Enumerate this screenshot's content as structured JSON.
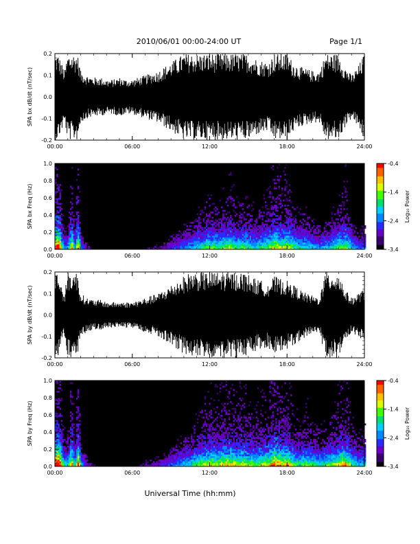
{
  "header": {
    "title": "2010/06/01   00:00-24:00 UT",
    "page": "Page 1/1"
  },
  "colors": {
    "background": "#ffffff",
    "foreground": "#000000",
    "colormap": [
      "#000000",
      "#3b0070",
      "#6a00c8",
      "#2a2aff",
      "#0088ff",
      "#00d0ff",
      "#00e070",
      "#40ff00",
      "#d8ff00",
      "#ffc000",
      "#ff6000",
      "#ff0000"
    ]
  },
  "x_axis": {
    "label": "Universal Time (hh:mm)",
    "ticks": [
      "00:00",
      "06:00",
      "12:00",
      "18:00",
      "24:00"
    ],
    "range_hours": [
      0,
      24
    ]
  },
  "colorbar": {
    "label": "Log₁₀ Power",
    "ticks": [
      "-0.4",
      "-1.4",
      "-2.4",
      "-3.4"
    ],
    "range": [
      -3.4,
      -0.4
    ]
  },
  "chart_data": [
    {
      "type": "line",
      "ylabel": "SPA bx dB/dt (nT/sec)",
      "ylim": [
        -0.2,
        0.2
      ],
      "yticks": [
        "0.2",
        "0.1",
        "0.0",
        "-0.1",
        "-0.2"
      ],
      "x_hours": [
        0,
        0.25,
        0.5,
        0.75,
        1,
        1.25,
        1.5,
        1.75,
        2,
        2.5,
        3,
        3.5,
        4,
        4.5,
        5,
        5.5,
        6,
        6.5,
        7,
        7.5,
        8,
        8.5,
        9,
        9.5,
        10,
        10.5,
        11,
        11.5,
        12,
        12.5,
        13,
        13.5,
        14,
        14.5,
        15,
        15.5,
        16,
        16.5,
        17,
        17.5,
        18,
        18.5,
        19,
        19.5,
        20,
        20.5,
        21,
        21.5,
        22,
        22.5,
        23,
        23.5,
        24
      ],
      "envelope_nT_per_s": [
        0.2,
        0.2,
        0.16,
        0.12,
        0.2,
        0.2,
        0.2,
        0.2,
        0.12,
        0.1,
        0.09,
        0.09,
        0.08,
        0.08,
        0.09,
        0.08,
        0.08,
        0.09,
        0.1,
        0.11,
        0.12,
        0.14,
        0.16,
        0.18,
        0.2,
        0.2,
        0.2,
        0.2,
        0.2,
        0.2,
        0.2,
        0.2,
        0.2,
        0.2,
        0.2,
        0.18,
        0.17,
        0.16,
        0.2,
        0.2,
        0.2,
        0.16,
        0.14,
        0.13,
        0.12,
        0.12,
        0.2,
        0.2,
        0.2,
        0.14,
        0.1,
        0.14,
        0.2
      ]
    },
    {
      "type": "heatmap",
      "ylabel": "SPA bx Freq (Hz)",
      "ylim": [
        0.0,
        1.0
      ],
      "yticks": [
        "1.0",
        "0.8",
        "0.6",
        "0.4",
        "0.2",
        "0.0"
      ],
      "x_hours": [
        0,
        0.25,
        0.5,
        0.75,
        1,
        1.25,
        1.5,
        1.75,
        2,
        2.5,
        3,
        3.5,
        4,
        4.5,
        5,
        5.5,
        6,
        6.5,
        7,
        7.5,
        8,
        8.5,
        9,
        9.5,
        10,
        10.5,
        11,
        11.5,
        12,
        12.5,
        13,
        13.5,
        14,
        14.5,
        15,
        15.5,
        16,
        16.5,
        17,
        17.5,
        18,
        18.5,
        19,
        19.5,
        20,
        20.5,
        21,
        21.5,
        22,
        22.5,
        23,
        23.5,
        24
      ],
      "activity_0_to_1": [
        0.85,
        0.95,
        0.5,
        0.3,
        0.4,
        0.75,
        0.35,
        0.8,
        0.3,
        0.18,
        0.12,
        0.1,
        0.12,
        0.1,
        0.1,
        0.1,
        0.1,
        0.12,
        0.15,
        0.16,
        0.18,
        0.2,
        0.25,
        0.3,
        0.35,
        0.38,
        0.45,
        0.5,
        0.55,
        0.5,
        0.55,
        0.6,
        0.5,
        0.55,
        0.5,
        0.45,
        0.5,
        0.55,
        0.7,
        0.6,
        0.65,
        0.5,
        0.45,
        0.45,
        0.4,
        0.35,
        0.4,
        0.45,
        0.55,
        0.6,
        0.4,
        0.3,
        0.35
      ],
      "colorbar_range_log10_power": [
        -3.4,
        -0.4
      ]
    },
    {
      "type": "line",
      "ylabel": "SPA by dB/dt (nT/sec)",
      "ylim": [
        -0.2,
        0.2
      ],
      "yticks": [
        "0.2",
        "0.1",
        "0.0",
        "-0.1",
        "-0.2"
      ],
      "x_hours": [
        0,
        0.25,
        0.5,
        0.75,
        1,
        1.25,
        1.5,
        1.75,
        2,
        2.5,
        3,
        3.5,
        4,
        4.5,
        5,
        5.5,
        6,
        6.5,
        7,
        7.5,
        8,
        8.5,
        9,
        9.5,
        10,
        10.5,
        11,
        11.5,
        12,
        12.5,
        13,
        13.5,
        14,
        14.5,
        15,
        15.5,
        16,
        16.5,
        17,
        17.5,
        18,
        18.5,
        19,
        19.5,
        20,
        20.5,
        21,
        21.5,
        22,
        22.5,
        23,
        23.5,
        24
      ],
      "envelope_nT_per_s": [
        0.2,
        0.2,
        0.14,
        0.1,
        0.2,
        0.2,
        0.2,
        0.2,
        0.1,
        0.08,
        0.07,
        0.07,
        0.06,
        0.06,
        0.06,
        0.06,
        0.06,
        0.07,
        0.08,
        0.09,
        0.1,
        0.12,
        0.14,
        0.16,
        0.18,
        0.2,
        0.2,
        0.2,
        0.2,
        0.2,
        0.2,
        0.2,
        0.2,
        0.2,
        0.19,
        0.17,
        0.16,
        0.15,
        0.18,
        0.17,
        0.16,
        0.14,
        0.12,
        0.1,
        0.09,
        0.08,
        0.2,
        0.2,
        0.2,
        0.12,
        0.08,
        0.1,
        0.12
      ]
    },
    {
      "type": "heatmap",
      "ylabel": "SPA by Freq (Hz)",
      "ylim": [
        0.0,
        1.0
      ],
      "yticks": [
        "1.0",
        "0.8",
        "0.6",
        "0.4",
        "0.2",
        "0.0"
      ],
      "x_hours": [
        0,
        0.25,
        0.5,
        0.75,
        1,
        1.25,
        1.5,
        1.75,
        2,
        2.5,
        3,
        3.5,
        4,
        4.5,
        5,
        5.5,
        6,
        6.5,
        7,
        7.5,
        8,
        8.5,
        9,
        9.5,
        10,
        10.5,
        11,
        11.5,
        12,
        12.5,
        13,
        13.5,
        14,
        14.5,
        15,
        15.5,
        16,
        16.5,
        17,
        17.5,
        18,
        18.5,
        19,
        19.5,
        20,
        20.5,
        21,
        21.5,
        22,
        22.5,
        23,
        23.5,
        24
      ],
      "activity_0_to_1": [
        0.95,
        1.0,
        0.6,
        0.4,
        0.45,
        0.8,
        0.4,
        0.85,
        0.35,
        0.2,
        0.15,
        0.12,
        0.14,
        0.12,
        0.12,
        0.12,
        0.12,
        0.15,
        0.18,
        0.2,
        0.22,
        0.25,
        0.3,
        0.35,
        0.42,
        0.45,
        0.55,
        0.6,
        0.65,
        0.6,
        0.65,
        0.7,
        0.6,
        0.65,
        0.6,
        0.55,
        0.6,
        0.65,
        0.8,
        0.7,
        0.7,
        0.55,
        0.5,
        0.55,
        0.5,
        0.45,
        0.5,
        0.55,
        0.65,
        0.7,
        0.5,
        0.4,
        0.45
      ],
      "colorbar_range_log10_power": [
        -3.4,
        -0.4
      ]
    }
  ]
}
